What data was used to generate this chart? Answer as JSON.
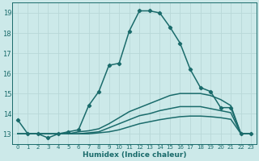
{
  "xlabel": "Humidex (Indice chaleur)",
  "bg_color": "#cce9e9",
  "grid_color": "#b8d8d8",
  "line_color": "#1a6b6b",
  "xlim": [
    -0.5,
    23.5
  ],
  "ylim": [
    12.5,
    19.5
  ],
  "yticks": [
    13,
    14,
    15,
    16,
    17,
    18,
    19
  ],
  "xticks": [
    0,
    1,
    2,
    3,
    4,
    5,
    6,
    7,
    8,
    9,
    10,
    11,
    12,
    13,
    14,
    15,
    16,
    17,
    18,
    19,
    20,
    21,
    22,
    23
  ],
  "series": [
    {
      "x": [
        0,
        1,
        2,
        3,
        4,
        5,
        6,
        7,
        8,
        9,
        10,
        11,
        12,
        13,
        14,
        15,
        16,
        17,
        18,
        19,
        20,
        21,
        22,
        23
      ],
      "y": [
        13.7,
        13.0,
        13.0,
        12.8,
        13.0,
        13.1,
        13.2,
        14.4,
        15.1,
        16.4,
        16.5,
        18.1,
        19.1,
        19.1,
        19.0,
        18.3,
        17.5,
        16.2,
        15.3,
        15.1,
        14.3,
        14.3,
        13.0,
        13.0
      ],
      "marker": true
    },
    {
      "x": [
        0,
        1,
        2,
        3,
        4,
        5,
        6,
        7,
        8,
        9,
        10,
        11,
        12,
        13,
        14,
        15,
        16,
        17,
        18,
        19,
        20,
        21,
        22,
        23
      ],
      "y": [
        13.0,
        13.0,
        13.0,
        13.0,
        13.0,
        13.0,
        13.1,
        13.15,
        13.25,
        13.5,
        13.8,
        14.1,
        14.3,
        14.5,
        14.7,
        14.9,
        15.0,
        15.0,
        15.0,
        14.9,
        14.7,
        14.4,
        13.0,
        13.0
      ],
      "marker": false
    },
    {
      "x": [
        0,
        1,
        2,
        3,
        4,
        5,
        6,
        7,
        8,
        9,
        10,
        11,
        12,
        13,
        14,
        15,
        16,
        17,
        18,
        19,
        20,
        21,
        22,
        23
      ],
      "y": [
        13.0,
        13.0,
        13.0,
        13.0,
        13.0,
        13.0,
        13.0,
        13.05,
        13.1,
        13.3,
        13.5,
        13.7,
        13.9,
        14.0,
        14.15,
        14.25,
        14.35,
        14.35,
        14.35,
        14.25,
        14.15,
        14.05,
        13.0,
        13.0
      ],
      "marker": false
    },
    {
      "x": [
        0,
        1,
        2,
        3,
        4,
        5,
        6,
        7,
        8,
        9,
        10,
        11,
        12,
        13,
        14,
        15,
        16,
        17,
        18,
        19,
        20,
        21,
        22,
        23
      ],
      "y": [
        13.0,
        13.0,
        13.0,
        13.0,
        13.0,
        13.0,
        13.0,
        13.0,
        13.05,
        13.1,
        13.2,
        13.35,
        13.5,
        13.6,
        13.7,
        13.78,
        13.85,
        13.88,
        13.88,
        13.85,
        13.8,
        13.72,
        13.0,
        13.0
      ],
      "marker": false
    }
  ]
}
